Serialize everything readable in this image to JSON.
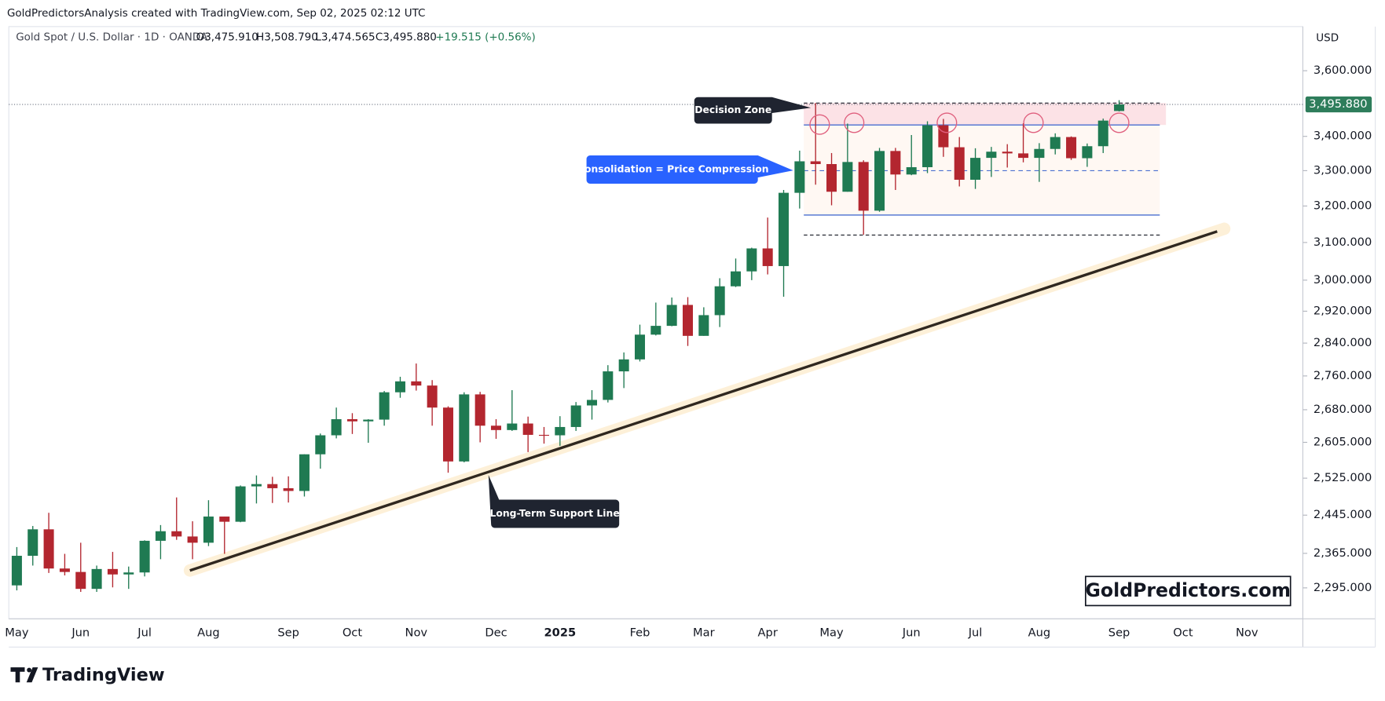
{
  "header": {
    "caption": "GoldPredictorsAnalysis created with TradingView.com, Sep 02, 2025 02:12 UTC"
  },
  "chart_data": {
    "type": "candlestick",
    "symbol": "Gold Spot / U.S. Dollar · 1D · OANDA",
    "ohlc_labels": [
      "O3,475.910",
      "H3,508.790",
      "L3,474.565",
      "C3,495.880",
      "+19.515 (+0.56%)"
    ],
    "currency": "USD",
    "log_scale": true,
    "grid": false,
    "up_color": "#1f7a52",
    "down_color": "#b3262f",
    "categories": [
      "May",
      null,
      null,
      null,
      "Jun",
      null,
      null,
      null,
      "Jul",
      null,
      null,
      null,
      "Aug",
      null,
      null,
      null,
      null,
      "Sep",
      null,
      null,
      null,
      "Oct",
      null,
      null,
      null,
      "Nov",
      null,
      null,
      null,
      null,
      "Dec",
      null,
      null,
      null,
      "2025",
      null,
      null,
      null,
      null,
      "Feb",
      null,
      null,
      null,
      "Mar",
      null,
      null,
      null,
      "Apr",
      null,
      null,
      null,
      "May",
      null,
      null,
      null,
      null,
      "Jun",
      null,
      null,
      null,
      "Jul",
      null,
      null,
      null,
      "Aug",
      null,
      null,
      null,
      null,
      "Sep",
      null,
      null,
      null,
      "Oct",
      null,
      null,
      null,
      "Nov",
      null,
      null,
      null
    ],
    "open": [
      2300,
      2360,
      2415,
      2334,
      2327,
      2293,
      2333,
      2322,
      2326,
      2391,
      2411,
      2400,
      2387,
      2442,
      2431,
      2507,
      2512,
      2503,
      2497,
      2578,
      2621,
      2658,
      2653,
      2657,
      2721,
      2747,
      2737,
      2685,
      2562,
      2716,
      2643,
      2633,
      2648,
      2622,
      2621,
      2640,
      2690,
      2703,
      2771,
      2800,
      2861,
      2883,
      2936,
      2858,
      2910,
      2984,
      3023,
      3084,
      3037,
      3237,
      3327,
      3319,
      3240,
      3325,
      3187,
      3357,
      3289,
      3310,
      3433,
      3368,
      3274,
      3337,
      3355,
      3350,
      3337,
      3363,
      3398,
      3336,
      3371,
      3475.91,
      null,
      null,
      null,
      null,
      null,
      null,
      null,
      null,
      null,
      null,
      null
    ],
    "high": [
      2378,
      2422,
      2450,
      2364,
      2387,
      2340,
      2368,
      2338,
      2392,
      2424,
      2483,
      2432,
      2477,
      2442,
      2509,
      2531,
      2528,
      2529,
      2578,
      2625,
      2685,
      2672,
      2658,
      2724,
      2758,
      2790,
      2750,
      2688,
      2721,
      2722,
      2658,
      2726,
      2664,
      2640,
      2665,
      2698,
      2726,
      2786,
      2817,
      2886,
      2942,
      2955,
      2956,
      2930,
      3005,
      3057,
      3086,
      3168,
      3245,
      3358,
      3500,
      3351,
      3438,
      3330,
      3366,
      3366,
      3404,
      3445,
      3452,
      3398,
      3365,
      3369,
      3377,
      3439,
      3380,
      3409,
      3400,
      3379,
      3453,
      3508.79,
      null,
      null,
      null,
      null,
      null,
      null,
      null,
      null,
      null,
      null,
      null
    ],
    "low": [
      2290,
      2340,
      2325,
      2320,
      2287,
      2287,
      2296,
      2293,
      2318,
      2353,
      2393,
      2353,
      2380,
      2364,
      2430,
      2470,
      2471,
      2472,
      2485,
      2546,
      2614,
      2624,
      2604,
      2643,
      2708,
      2725,
      2643,
      2537,
      2560,
      2605,
      2613,
      2631,
      2583,
      2602,
      2597,
      2631,
      2657,
      2697,
      2731,
      2795,
      2859,
      2882,
      2833,
      2858,
      2880,
      2982,
      3000,
      3015,
      2957,
      3193,
      3260,
      3202,
      3240,
      3121,
      3184,
      3245,
      3287,
      3293,
      3340,
      3255,
      3248,
      3282,
      3309,
      3324,
      3268,
      3347,
      3331,
      3311,
      3351,
      3474.565,
      null,
      null,
      null,
      null,
      null,
      null,
      null,
      null,
      null,
      null,
      null
    ],
    "close": [
      2360,
      2415,
      2334,
      2327,
      2293,
      2333,
      2322,
      2326,
      2391,
      2411,
      2400,
      2387,
      2442,
      2431,
      2507,
      2512,
      2503,
      2497,
      2578,
      2621,
      2658,
      2653,
      2657,
      2721,
      2747,
      2737,
      2685,
      2562,
      2716,
      2643,
      2633,
      2648,
      2622,
      2621,
      2640,
      2690,
      2703,
      2771,
      2800,
      2861,
      2883,
      2936,
      2858,
      2910,
      2984,
      3023,
      3084,
      3037,
      3237,
      3327,
      3319,
      3240,
      3325,
      3187,
      3357,
      3289,
      3310,
      3433,
      3368,
      3274,
      3337,
      3355,
      3350,
      3337,
      3363,
      3398,
      3336,
      3371,
      3447,
      3495.88,
      null,
      null,
      null,
      null,
      null,
      null,
      null,
      null,
      null,
      null,
      null
    ],
    "ylim": [
      2234,
      3741
    ],
    "yticks": [
      {
        "value": 2295,
        "label": "2,295.000"
      },
      {
        "value": 2365,
        "label": "2,365.000"
      },
      {
        "value": 2445,
        "label": "2,445.000"
      },
      {
        "value": 2525,
        "label": "2,525.000"
      },
      {
        "value": 2605,
        "label": "2,605.000"
      },
      {
        "value": 2680,
        "label": "2,680.000"
      },
      {
        "value": 2760,
        "label": "2,760.000"
      },
      {
        "value": 2840,
        "label": "2,840.000"
      },
      {
        "value": 2920,
        "label": "2,920.000"
      },
      {
        "value": 3000,
        "label": "3,000.000"
      },
      {
        "value": 3100,
        "label": "3,100.000"
      },
      {
        "value": 3200,
        "label": "3,200.000"
      },
      {
        "value": 3300,
        "label": "3,300.000"
      },
      {
        "value": 3400,
        "label": "3,400.000"
      },
      {
        "value": 3600,
        "label": "3,600.000"
      }
    ],
    "last_price": {
      "value": 3495.88,
      "label": "3,495.880",
      "color": "#2e7d5b"
    },
    "drawings": {
      "decision_zone": {
        "label": "Decision Zone",
        "low": 3434,
        "high": 3500
      },
      "consolidation": {
        "label": "Consolidation = Price Compression",
        "top": 3434,
        "mid": 3300,
        "bottom": 3175,
        "floor": 3120
      },
      "support_line": {
        "label": "Long-Term Support Line",
        "start": 2330,
        "end": 3130
      }
    },
    "watermark": "GoldPredictors.com"
  },
  "footer": {
    "brand": "TradingView"
  }
}
